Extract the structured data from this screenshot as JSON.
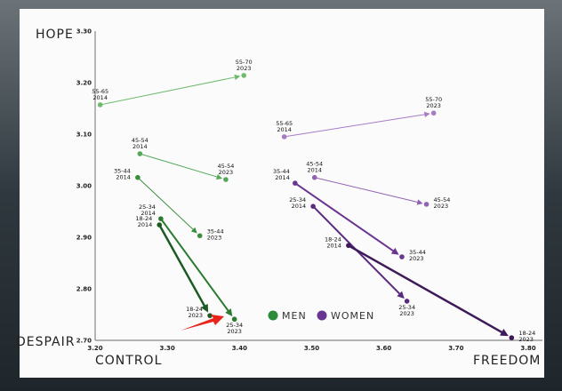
{
  "chart_data": {
    "type": "scatter",
    "title": "",
    "xlabel_left": "CONTROL",
    "xlabel_right": "FREEDOM",
    "ylabel_top": "HOPE",
    "ylabel_bottom": "DESPAIR",
    "xlim": [
      3.2,
      3.8
    ],
    "ylim": [
      2.7,
      3.3
    ],
    "xticks": [
      "3.20",
      "3.30",
      "3.40",
      "3.50",
      "3.60",
      "3.70",
      "3.80"
    ],
    "yticks": [
      "2.70",
      "2.80",
      "2.90",
      "3.00",
      "3.10",
      "3.20",
      "3.30"
    ],
    "legend": [
      {
        "label": "MEN",
        "color": "#2e8b3a"
      },
      {
        "label": "WOMEN",
        "color": "#6a3590"
      }
    ],
    "legend_position": "bottom-center",
    "series": [
      {
        "name": "MEN",
        "arrows": [
          {
            "from": {
              "age": "55-65",
              "year": "2014",
              "x": 3.207,
              "y": 3.157,
              "pos": "above"
            },
            "to": {
              "age": "55-70",
              "year": "2023",
              "x": 3.406,
              "y": 3.214,
              "pos": "above"
            },
            "color": "#6dbb6d",
            "width": 1
          },
          {
            "from": {
              "age": "45-54",
              "year": "2014",
              "x": 3.262,
              "y": 3.062,
              "pos": "above"
            },
            "to": {
              "age": "45-54",
              "year": "2023",
              "x": 3.381,
              "y": 3.012,
              "pos": "above"
            },
            "color": "#52a857",
            "width": 1
          },
          {
            "from": {
              "age": "35-44",
              "year": "2014",
              "x": 3.259,
              "y": 3.016,
              "pos": "left"
            },
            "to": {
              "age": "35-44",
              "year": "2023",
              "x": 3.345,
              "y": 2.903,
              "pos": "right"
            },
            "color": "#3a8f3f",
            "width": 1
          },
          {
            "from": {
              "age": "25-34",
              "year": "2014",
              "x": 3.291,
              "y": 2.936,
              "pos": "leftup"
            },
            "to": {
              "age": "25-34",
              "year": "2023",
              "x": 3.393,
              "y": 2.741,
              "pos": "below"
            },
            "color": "#2a7a30",
            "width": 2
          },
          {
            "from": {
              "age": "18-24",
              "year": "2014",
              "x": 3.289,
              "y": 2.924,
              "pos": "left"
            },
            "to": {
              "age": "18-24",
              "year": "2023",
              "x": 3.359,
              "y": 2.748,
              "pos": "left"
            },
            "color": "#1d5a22",
            "width": 2.5
          }
        ]
      },
      {
        "name": "WOMEN",
        "arrows": [
          {
            "from": {
              "age": "55-65",
              "year": "2014",
              "x": 3.462,
              "y": 3.095,
              "pos": "above"
            },
            "to": {
              "age": "55-70",
              "year": "2023",
              "x": 3.669,
              "y": 3.141,
              "pos": "above"
            },
            "color": "#a77bc6",
            "width": 1
          },
          {
            "from": {
              "age": "45-54",
              "year": "2014",
              "x": 3.504,
              "y": 3.016,
              "pos": "above"
            },
            "to": {
              "age": "45-54",
              "year": "2023",
              "x": 3.659,
              "y": 2.964,
              "pos": "right"
            },
            "color": "#9163b3",
            "width": 1
          },
          {
            "from": {
              "age": "35-44",
              "year": "2014",
              "x": 3.477,
              "y": 3.005,
              "pos": "leftup"
            },
            "to": {
              "age": "35-44",
              "year": "2023",
              "x": 3.625,
              "y": 2.862,
              "pos": "right"
            },
            "color": "#6a3590",
            "width": 2
          },
          {
            "from": {
              "age": "25-34",
              "year": "2014",
              "x": 3.502,
              "y": 2.96,
              "pos": "left"
            },
            "to": {
              "age": "25-34",
              "year": "2023",
              "x": 3.632,
              "y": 2.776,
              "pos": "below"
            },
            "color": "#5a2a7e",
            "width": 2
          },
          {
            "from": {
              "age": "18-24",
              "year": "2014",
              "x": 3.551,
              "y": 2.884,
              "pos": "left"
            },
            "to": {
              "age": "18-24",
              "year": "2023",
              "x": 3.777,
              "y": 2.705,
              "pos": "right"
            },
            "color": "#3e1a5a",
            "width": 2.5
          }
        ]
      }
    ],
    "annotation": {
      "type": "red-arrow",
      "color": "#e8231a",
      "points_to": "MEN 18-24/25-34 2023"
    }
  }
}
